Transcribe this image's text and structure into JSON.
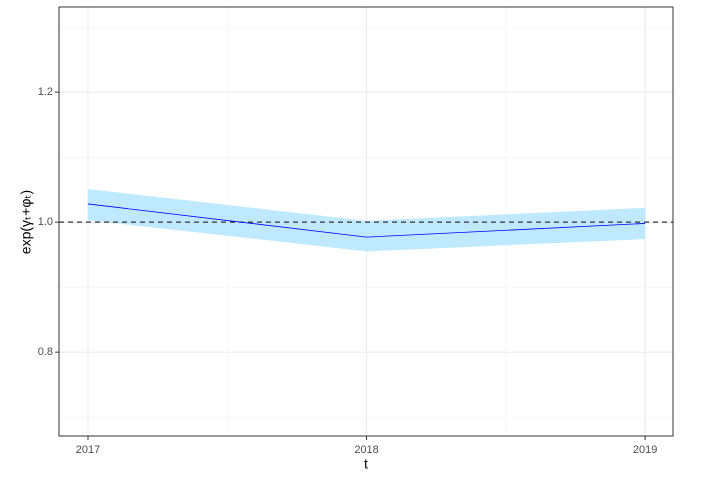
{
  "chart_data": {
    "type": "line",
    "x_label": "t",
    "y_label": "exp(γₜ+φₜ)",
    "x": [
      2017,
      2018,
      2019
    ],
    "series": [
      {
        "color": "#0000ff",
        "band_color": "#bfe9ff",
        "values": [
          1.028,
          0.977,
          0.998
        ],
        "lower": [
          1.003,
          0.955,
          0.974
        ],
        "upper": [
          1.051,
          1.002,
          1.022
        ]
      }
    ],
    "hline": 1.0,
    "xlim": [
      2016.896,
      2019.1
    ],
    "xticks": [
      2017,
      2018,
      2019
    ],
    "minor_xticks": [
      2017.5,
      2018.5
    ],
    "ylim": [
      0.671,
      1.331
    ],
    "yticks": [
      {
        "value": 0.8,
        "label": "0.8"
      },
      {
        "value": 1.0,
        "label": "1.0"
      },
      {
        "value": 1.2,
        "label": "1.2"
      }
    ],
    "minor_yticks": [
      0.7,
      0.9,
      1.1,
      1.3
    ],
    "grid": true
  }
}
